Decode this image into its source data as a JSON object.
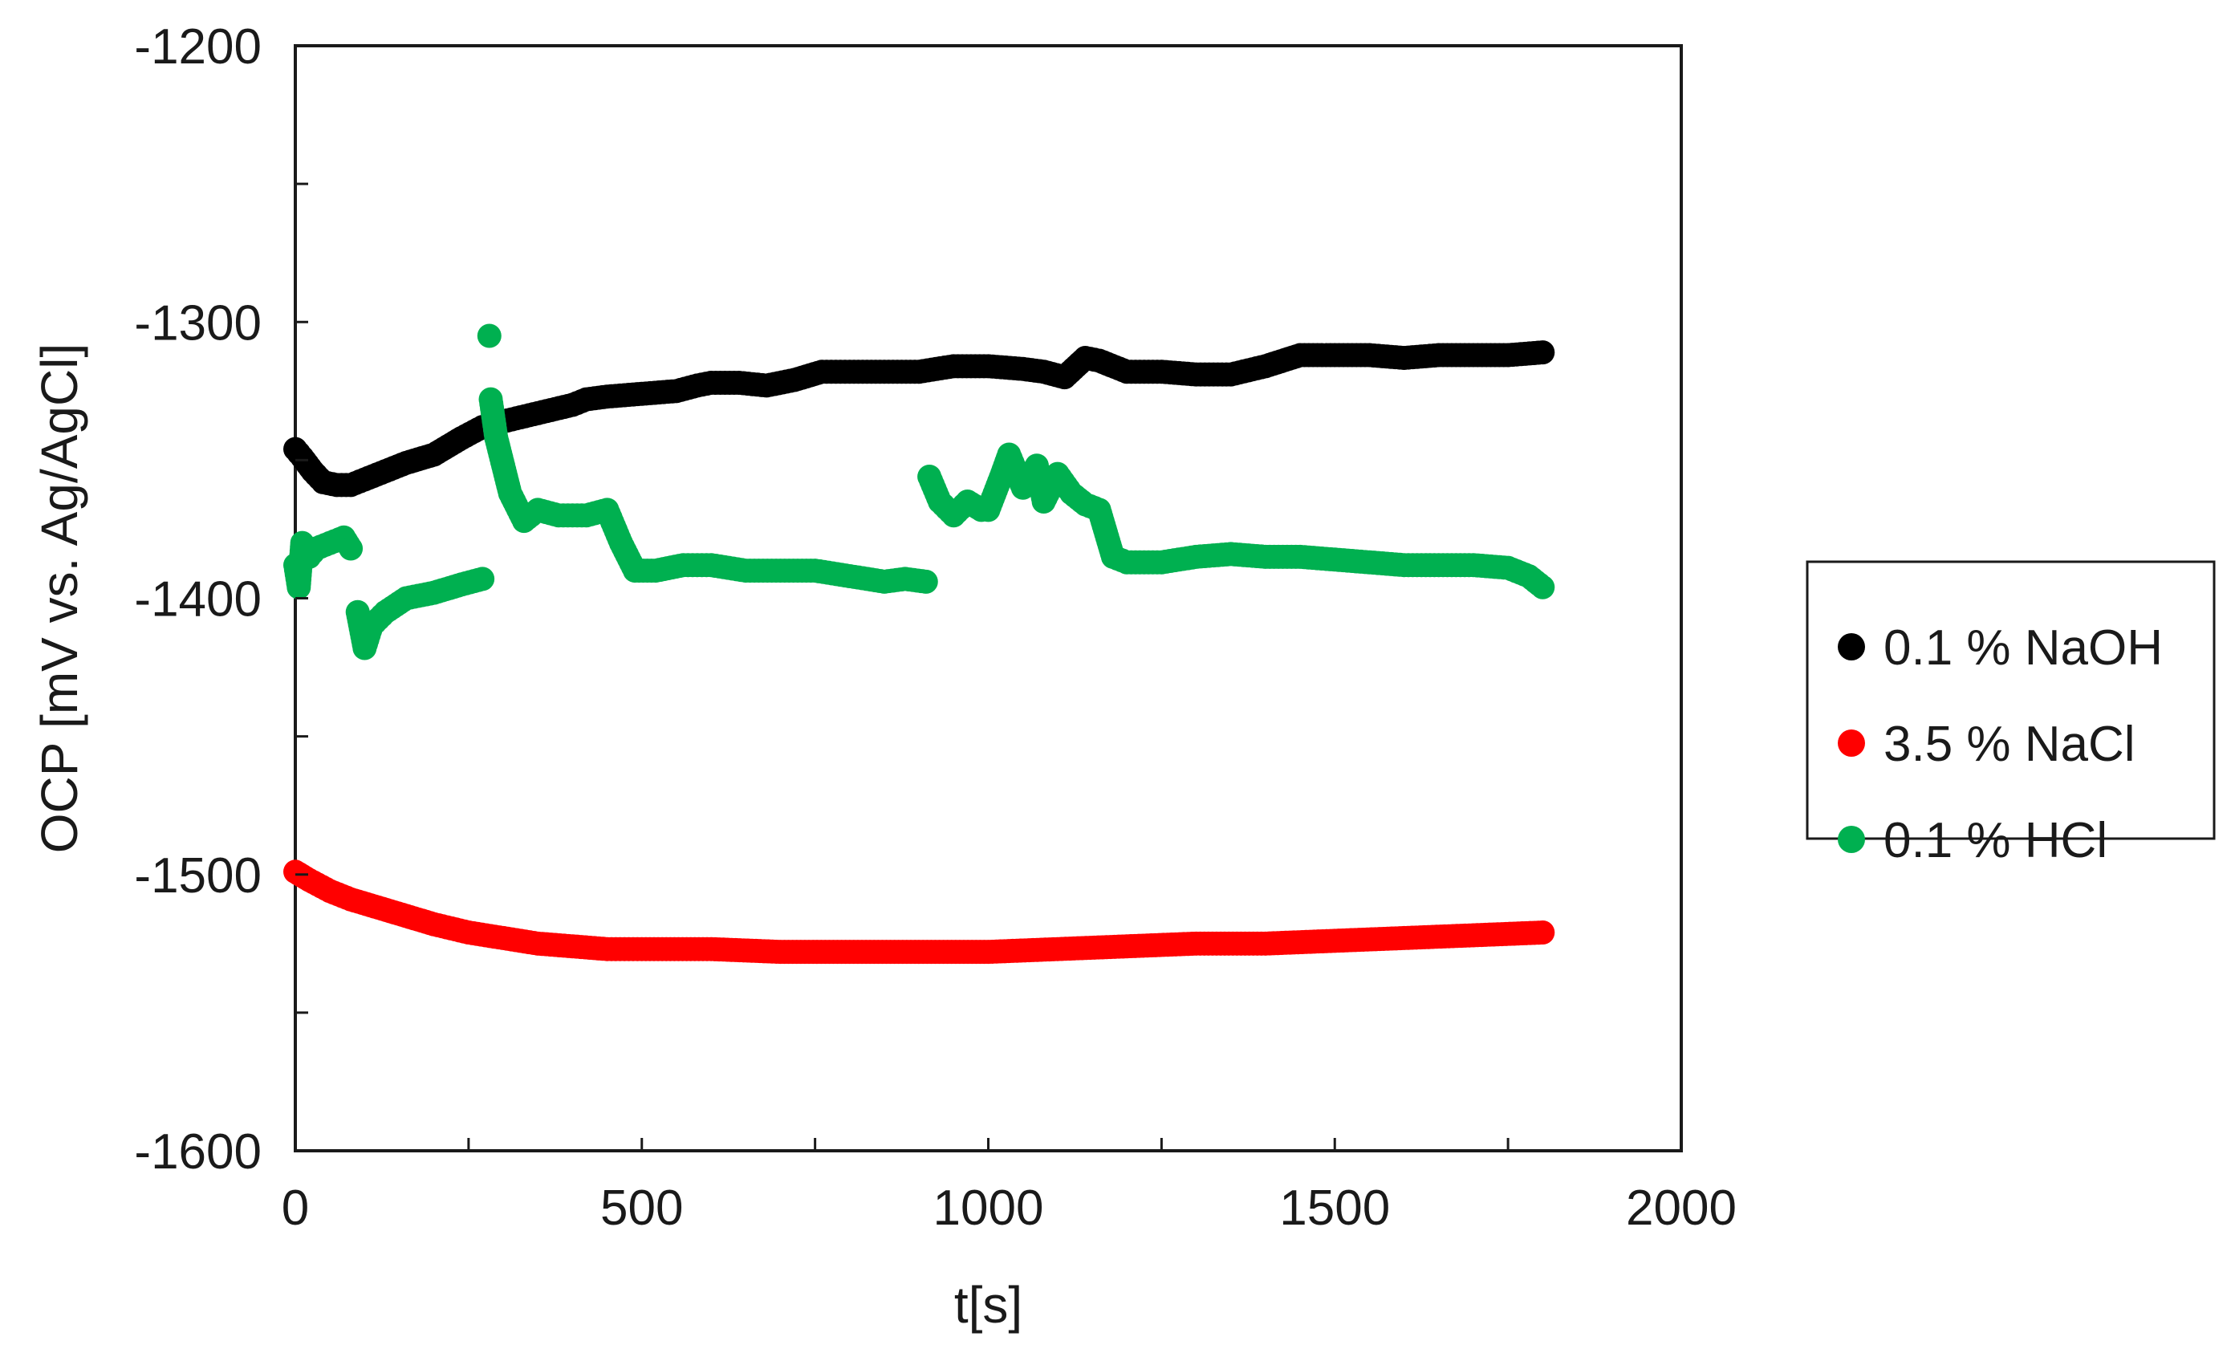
{
  "chart_data": {
    "type": "scatter",
    "title": "",
    "xlabel": "t[s]",
    "ylabel": "OCP [mV vs. Ag/AgCl]",
    "xlim": [
      0,
      2000
    ],
    "ylim": [
      -1600,
      -1200
    ],
    "xticks": [
      0,
      500,
      1000,
      1500,
      2000
    ],
    "yticks": [
      -1200,
      -1300,
      -1400,
      -1500,
      -1600
    ],
    "xtick_labels": [
      "0",
      "500",
      "1000",
      "1500",
      "2000"
    ],
    "ytick_labels": [
      "-1200",
      "-1300",
      "-1400",
      "-1500",
      "-1600"
    ],
    "grid": false,
    "legend_position": "right",
    "series": [
      {
        "name": "0.1 % NaOH",
        "color": "#000000",
        "points": [
          [
            0,
            -1346
          ],
          [
            10,
            -1349
          ],
          [
            25,
            -1354
          ],
          [
            40,
            -1358
          ],
          [
            60,
            -1359
          ],
          [
            80,
            -1359
          ],
          [
            100,
            -1357
          ],
          [
            130,
            -1354
          ],
          [
            160,
            -1351
          ],
          [
            200,
            -1348
          ],
          [
            240,
            -1342
          ],
          [
            270,
            -1338
          ],
          [
            300,
            -1336
          ],
          [
            350,
            -1333
          ],
          [
            400,
            -1330
          ],
          [
            420,
            -1328
          ],
          [
            450,
            -1327
          ],
          [
            500,
            -1326
          ],
          [
            550,
            -1325
          ],
          [
            580,
            -1323
          ],
          [
            600,
            -1322
          ],
          [
            640,
            -1322
          ],
          [
            680,
            -1323
          ],
          [
            720,
            -1321
          ],
          [
            760,
            -1318
          ],
          [
            800,
            -1318
          ],
          [
            850,
            -1318
          ],
          [
            900,
            -1318
          ],
          [
            950,
            -1316
          ],
          [
            1000,
            -1316
          ],
          [
            1050,
            -1317
          ],
          [
            1080,
            -1318
          ],
          [
            1110,
            -1320
          ],
          [
            1140,
            -1313
          ],
          [
            1160,
            -1314
          ],
          [
            1200,
            -1318
          ],
          [
            1250,
            -1318
          ],
          [
            1300,
            -1319
          ],
          [
            1350,
            -1319
          ],
          [
            1400,
            -1316
          ],
          [
            1450,
            -1312
          ],
          [
            1500,
            -1312
          ],
          [
            1550,
            -1312
          ],
          [
            1600,
            -1313
          ],
          [
            1650,
            -1312
          ],
          [
            1700,
            -1312
          ],
          [
            1750,
            -1312
          ],
          [
            1800,
            -1311
          ]
        ]
      },
      {
        "name": "3.5 % NaCl",
        "color": "#ff0000",
        "points": [
          [
            0,
            -1499
          ],
          [
            20,
            -1502
          ],
          [
            50,
            -1506
          ],
          [
            80,
            -1509
          ],
          [
            120,
            -1512
          ],
          [
            160,
            -1515
          ],
          [
            200,
            -1518
          ],
          [
            250,
            -1521
          ],
          [
            300,
            -1523
          ],
          [
            350,
            -1525
          ],
          [
            400,
            -1526
          ],
          [
            450,
            -1527
          ],
          [
            500,
            -1527
          ],
          [
            600,
            -1527
          ],
          [
            700,
            -1528
          ],
          [
            800,
            -1528
          ],
          [
            900,
            -1528
          ],
          [
            1000,
            -1528
          ],
          [
            1100,
            -1527
          ],
          [
            1200,
            -1526
          ],
          [
            1300,
            -1525
          ],
          [
            1400,
            -1525
          ],
          [
            1500,
            -1524
          ],
          [
            1600,
            -1523
          ],
          [
            1700,
            -1522
          ],
          [
            1800,
            -1521
          ]
        ]
      },
      {
        "name": "0.1 % HCl",
        "color": "#00b050",
        "points": [
          [
            0,
            -1388
          ],
          [
            5,
            -1396
          ],
          [
            10,
            -1380
          ],
          [
            20,
            -1385
          ],
          [
            30,
            -1382
          ],
          [
            50,
            -1380
          ],
          [
            70,
            -1378
          ],
          [
            80,
            -1382
          ],
          [
            90,
            -1405
          ],
          [
            100,
            -1418
          ],
          [
            110,
            -1410
          ],
          [
            130,
            -1405
          ],
          [
            160,
            -1400
          ],
          [
            200,
            -1398
          ],
          [
            240,
            -1395
          ],
          [
            270,
            -1393
          ],
          [
            280,
            -1305
          ],
          [
            282,
            -1328
          ],
          [
            290,
            -1342
          ],
          [
            300,
            -1352
          ],
          [
            310,
            -1362
          ],
          [
            330,
            -1372
          ],
          [
            350,
            -1368
          ],
          [
            380,
            -1370
          ],
          [
            420,
            -1370
          ],
          [
            450,
            -1368
          ],
          [
            470,
            -1380
          ],
          [
            490,
            -1390
          ],
          [
            520,
            -1390
          ],
          [
            560,
            -1388
          ],
          [
            600,
            -1388
          ],
          [
            650,
            -1390
          ],
          [
            700,
            -1390
          ],
          [
            750,
            -1390
          ],
          [
            800,
            -1392
          ],
          [
            850,
            -1394
          ],
          [
            880,
            -1393
          ],
          [
            910,
            -1394
          ],
          [
            915,
            -1356
          ],
          [
            930,
            -1365
          ],
          [
            950,
            -1370
          ],
          [
            970,
            -1365
          ],
          [
            990,
            -1368
          ],
          [
            1000,
            -1368
          ],
          [
            1020,
            -1355
          ],
          [
            1030,
            -1348
          ],
          [
            1050,
            -1360
          ],
          [
            1070,
            -1352
          ],
          [
            1080,
            -1365
          ],
          [
            1100,
            -1355
          ],
          [
            1120,
            -1362
          ],
          [
            1140,
            -1366
          ],
          [
            1160,
            -1368
          ],
          [
            1180,
            -1385
          ],
          [
            1200,
            -1387
          ],
          [
            1250,
            -1387
          ],
          [
            1300,
            -1385
          ],
          [
            1350,
            -1384
          ],
          [
            1400,
            -1385
          ],
          [
            1450,
            -1385
          ],
          [
            1500,
            -1386
          ],
          [
            1550,
            -1387
          ],
          [
            1600,
            -1388
          ],
          [
            1650,
            -1388
          ],
          [
            1700,
            -1388
          ],
          [
            1750,
            -1389
          ],
          [
            1780,
            -1392
          ],
          [
            1800,
            -1396
          ]
        ]
      }
    ]
  }
}
